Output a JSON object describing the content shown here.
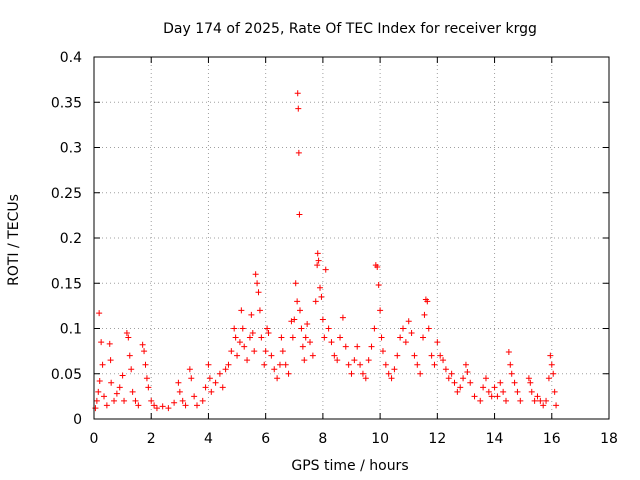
{
  "chart_data": {
    "type": "scatter",
    "title": "Day 174 of 2025, Rate Of TEC Index for receiver krgg",
    "xlabel": "GPS time / hours",
    "ylabel": "ROTI / TECUs",
    "xlim": [
      0,
      18
    ],
    "ylim": [
      0,
      0.4
    ],
    "x_ticks": [
      0,
      2,
      4,
      6,
      8,
      10,
      12,
      14,
      16,
      18
    ],
    "x_tick_labels": [
      "0",
      "2",
      "4",
      "6",
      "8",
      "10",
      "12",
      "14",
      "16",
      "18"
    ],
    "y_ticks": [
      0,
      0.05,
      0.1,
      0.15,
      0.2,
      0.25,
      0.3,
      0.35,
      0.4
    ],
    "y_tick_labels": [
      "0",
      "0.05",
      "0.1",
      "0.15",
      "0.2",
      "0.25",
      "0.3",
      "0.35",
      "0.4"
    ],
    "grid": true,
    "marker": "+",
    "color": "#ff0000",
    "series": [
      {
        "points": [
          [
            0.05,
            0.012
          ],
          [
            0.1,
            0.02
          ],
          [
            0.15,
            0.03
          ],
          [
            0.2,
            0.042
          ],
          [
            0.25,
            0.085
          ],
          [
            0.3,
            0.06
          ],
          [
            0.18,
            0.117
          ],
          [
            0.35,
            0.025
          ],
          [
            0.45,
            0.015
          ],
          [
            0.55,
            0.083
          ],
          [
            0.58,
            0.065
          ],
          [
            0.6,
            0.04
          ],
          [
            0.7,
            0.02
          ],
          [
            0.8,
            0.028
          ],
          [
            0.9,
            0.035
          ],
          [
            1.0,
            0.048
          ],
          [
            1.05,
            0.02
          ],
          [
            1.15,
            0.095
          ],
          [
            1.2,
            0.09
          ],
          [
            1.25,
            0.07
          ],
          [
            1.3,
            0.055
          ],
          [
            1.35,
            0.03
          ],
          [
            1.45,
            0.02
          ],
          [
            1.55,
            0.015
          ],
          [
            1.7,
            0.082
          ],
          [
            1.75,
            0.075
          ],
          [
            1.8,
            0.06
          ],
          [
            1.85,
            0.045
          ],
          [
            1.9,
            0.035
          ],
          [
            2.0,
            0.02
          ],
          [
            2.1,
            0.015
          ],
          [
            2.2,
            0.012
          ],
          [
            2.4,
            0.014
          ],
          [
            2.6,
            0.012
          ],
          [
            2.8,
            0.018
          ],
          [
            2.95,
            0.04
          ],
          [
            3.0,
            0.03
          ],
          [
            3.1,
            0.02
          ],
          [
            3.2,
            0.015
          ],
          [
            3.35,
            0.055
          ],
          [
            3.4,
            0.045
          ],
          [
            3.5,
            0.025
          ],
          [
            3.6,
            0.015
          ],
          [
            3.8,
            0.02
          ],
          [
            3.9,
            0.035
          ],
          [
            4.0,
            0.06
          ],
          [
            4.05,
            0.045
          ],
          [
            4.1,
            0.03
          ],
          [
            4.25,
            0.04
          ],
          [
            4.4,
            0.05
          ],
          [
            4.5,
            0.035
          ],
          [
            4.6,
            0.055
          ],
          [
            4.7,
            0.06
          ],
          [
            4.8,
            0.075
          ],
          [
            4.9,
            0.1
          ],
          [
            4.95,
            0.09
          ],
          [
            5.0,
            0.07
          ],
          [
            5.1,
            0.085
          ],
          [
            5.15,
            0.12
          ],
          [
            5.2,
            0.1
          ],
          [
            5.25,
            0.08
          ],
          [
            5.35,
            0.065
          ],
          [
            5.45,
            0.09
          ],
          [
            5.5,
            0.115
          ],
          [
            5.55,
            0.095
          ],
          [
            5.6,
            0.075
          ],
          [
            5.65,
            0.16
          ],
          [
            5.7,
            0.15
          ],
          [
            5.75,
            0.14
          ],
          [
            5.8,
            0.12
          ],
          [
            5.85,
            0.09
          ],
          [
            5.95,
            0.06
          ],
          [
            6.0,
            0.075
          ],
          [
            6.05,
            0.1
          ],
          [
            6.1,
            0.095
          ],
          [
            6.2,
            0.07
          ],
          [
            6.3,
            0.055
          ],
          [
            6.4,
            0.045
          ],
          [
            6.5,
            0.06
          ],
          [
            6.55,
            0.09
          ],
          [
            6.6,
            0.075
          ],
          [
            6.7,
            0.06
          ],
          [
            6.8,
            0.05
          ],
          [
            6.9,
            0.108
          ],
          [
            6.95,
            0.09
          ],
          [
            7.0,
            0.11
          ],
          [
            7.05,
            0.15
          ],
          [
            7.1,
            0.13
          ],
          [
            7.12,
            0.36
          ],
          [
            7.14,
            0.343
          ],
          [
            7.16,
            0.294
          ],
          [
            7.18,
            0.226
          ],
          [
            7.2,
            0.12
          ],
          [
            7.25,
            0.1
          ],
          [
            7.3,
            0.08
          ],
          [
            7.35,
            0.065
          ],
          [
            7.4,
            0.09
          ],
          [
            7.45,
            0.105
          ],
          [
            7.55,
            0.085
          ],
          [
            7.65,
            0.07
          ],
          [
            7.75,
            0.13
          ],
          [
            7.8,
            0.17
          ],
          [
            7.82,
            0.183
          ],
          [
            7.85,
            0.175
          ],
          [
            7.9,
            0.145
          ],
          [
            7.95,
            0.135
          ],
          [
            8.0,
            0.11
          ],
          [
            8.05,
            0.09
          ],
          [
            8.1,
            0.165
          ],
          [
            8.2,
            0.1
          ],
          [
            8.3,
            0.085
          ],
          [
            8.4,
            0.07
          ],
          [
            8.5,
            0.065
          ],
          [
            8.6,
            0.09
          ],
          [
            8.7,
            0.112
          ],
          [
            8.8,
            0.08
          ],
          [
            8.9,
            0.06
          ],
          [
            9.0,
            0.05
          ],
          [
            9.1,
            0.065
          ],
          [
            9.2,
            0.08
          ],
          [
            9.3,
            0.06
          ],
          [
            9.4,
            0.05
          ],
          [
            9.5,
            0.045
          ],
          [
            9.6,
            0.065
          ],
          [
            9.7,
            0.08
          ],
          [
            9.8,
            0.1
          ],
          [
            9.85,
            0.17
          ],
          [
            9.9,
            0.168
          ],
          [
            9.95,
            0.148
          ],
          [
            10.0,
            0.12
          ],
          [
            10.05,
            0.09
          ],
          [
            10.1,
            0.075
          ],
          [
            10.2,
            0.06
          ],
          [
            10.3,
            0.05
          ],
          [
            10.4,
            0.045
          ],
          [
            10.5,
            0.055
          ],
          [
            10.6,
            0.07
          ],
          [
            10.7,
            0.09
          ],
          [
            10.8,
            0.1
          ],
          [
            10.9,
            0.085
          ],
          [
            11.0,
            0.108
          ],
          [
            11.1,
            0.095
          ],
          [
            11.2,
            0.07
          ],
          [
            11.3,
            0.06
          ],
          [
            11.4,
            0.05
          ],
          [
            11.5,
            0.09
          ],
          [
            11.55,
            0.115
          ],
          [
            11.6,
            0.132
          ],
          [
            11.65,
            0.13
          ],
          [
            11.7,
            0.1
          ],
          [
            11.8,
            0.07
          ],
          [
            11.9,
            0.06
          ],
          [
            12.0,
            0.085
          ],
          [
            12.1,
            0.07
          ],
          [
            12.2,
            0.065
          ],
          [
            12.3,
            0.055
          ],
          [
            12.4,
            0.045
          ],
          [
            12.5,
            0.05
          ],
          [
            12.6,
            0.04
          ],
          [
            12.7,
            0.03
          ],
          [
            12.8,
            0.035
          ],
          [
            12.9,
            0.045
          ],
          [
            13.0,
            0.06
          ],
          [
            13.05,
            0.052
          ],
          [
            13.15,
            0.04
          ],
          [
            13.3,
            0.025
          ],
          [
            13.5,
            0.02
          ],
          [
            13.6,
            0.035
          ],
          [
            13.7,
            0.045
          ],
          [
            13.8,
            0.03
          ],
          [
            13.9,
            0.025
          ],
          [
            14.0,
            0.035
          ],
          [
            14.1,
            0.025
          ],
          [
            14.2,
            0.04
          ],
          [
            14.3,
            0.03
          ],
          [
            14.4,
            0.02
          ],
          [
            14.5,
            0.074
          ],
          [
            14.55,
            0.06
          ],
          [
            14.6,
            0.05
          ],
          [
            14.7,
            0.04
          ],
          [
            14.8,
            0.03
          ],
          [
            14.9,
            0.02
          ],
          [
            15.2,
            0.045
          ],
          [
            15.25,
            0.04
          ],
          [
            15.3,
            0.03
          ],
          [
            15.4,
            0.02
          ],
          [
            15.5,
            0.025
          ],
          [
            15.6,
            0.02
          ],
          [
            15.7,
            0.015
          ],
          [
            15.8,
            0.02
          ],
          [
            15.9,
            0.045
          ],
          [
            15.95,
            0.07
          ],
          [
            16.0,
            0.06
          ],
          [
            16.05,
            0.05
          ],
          [
            16.1,
            0.03
          ],
          [
            16.15,
            0.015
          ]
        ]
      }
    ]
  }
}
